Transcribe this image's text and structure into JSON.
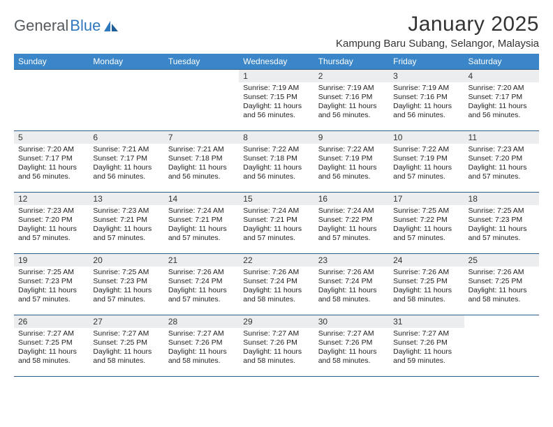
{
  "brand": {
    "part1": "General",
    "part2": "Blue"
  },
  "title": "January 2025",
  "location": "Kampung Baru Subang, Selangor, Malaysia",
  "colors": {
    "header_bg": "#3a86c8",
    "header_text": "#ffffff",
    "rule": "#2a5b86",
    "daynum_bg": "#ecedee",
    "brand_gray": "#555a5e",
    "brand_blue": "#2f78bd"
  },
  "weekdays": [
    "Sunday",
    "Monday",
    "Tuesday",
    "Wednesday",
    "Thursday",
    "Friday",
    "Saturday"
  ],
  "weeks": [
    [
      {
        "n": "",
        "sr": "",
        "ss": "",
        "dl": ""
      },
      {
        "n": "",
        "sr": "",
        "ss": "",
        "dl": ""
      },
      {
        "n": "",
        "sr": "",
        "ss": "",
        "dl": ""
      },
      {
        "n": "1",
        "sr": "Sunrise: 7:19 AM",
        "ss": "Sunset: 7:15 PM",
        "dl": "Daylight: 11 hours and 56 minutes."
      },
      {
        "n": "2",
        "sr": "Sunrise: 7:19 AM",
        "ss": "Sunset: 7:16 PM",
        "dl": "Daylight: 11 hours and 56 minutes."
      },
      {
        "n": "3",
        "sr": "Sunrise: 7:19 AM",
        "ss": "Sunset: 7:16 PM",
        "dl": "Daylight: 11 hours and 56 minutes."
      },
      {
        "n": "4",
        "sr": "Sunrise: 7:20 AM",
        "ss": "Sunset: 7:17 PM",
        "dl": "Daylight: 11 hours and 56 minutes."
      }
    ],
    [
      {
        "n": "5",
        "sr": "Sunrise: 7:20 AM",
        "ss": "Sunset: 7:17 PM",
        "dl": "Daylight: 11 hours and 56 minutes."
      },
      {
        "n": "6",
        "sr": "Sunrise: 7:21 AM",
        "ss": "Sunset: 7:17 PM",
        "dl": "Daylight: 11 hours and 56 minutes."
      },
      {
        "n": "7",
        "sr": "Sunrise: 7:21 AM",
        "ss": "Sunset: 7:18 PM",
        "dl": "Daylight: 11 hours and 56 minutes."
      },
      {
        "n": "8",
        "sr": "Sunrise: 7:22 AM",
        "ss": "Sunset: 7:18 PM",
        "dl": "Daylight: 11 hours and 56 minutes."
      },
      {
        "n": "9",
        "sr": "Sunrise: 7:22 AM",
        "ss": "Sunset: 7:19 PM",
        "dl": "Daylight: 11 hours and 56 minutes."
      },
      {
        "n": "10",
        "sr": "Sunrise: 7:22 AM",
        "ss": "Sunset: 7:19 PM",
        "dl": "Daylight: 11 hours and 57 minutes."
      },
      {
        "n": "11",
        "sr": "Sunrise: 7:23 AM",
        "ss": "Sunset: 7:20 PM",
        "dl": "Daylight: 11 hours and 57 minutes."
      }
    ],
    [
      {
        "n": "12",
        "sr": "Sunrise: 7:23 AM",
        "ss": "Sunset: 7:20 PM",
        "dl": "Daylight: 11 hours and 57 minutes."
      },
      {
        "n": "13",
        "sr": "Sunrise: 7:23 AM",
        "ss": "Sunset: 7:21 PM",
        "dl": "Daylight: 11 hours and 57 minutes."
      },
      {
        "n": "14",
        "sr": "Sunrise: 7:24 AM",
        "ss": "Sunset: 7:21 PM",
        "dl": "Daylight: 11 hours and 57 minutes."
      },
      {
        "n": "15",
        "sr": "Sunrise: 7:24 AM",
        "ss": "Sunset: 7:21 PM",
        "dl": "Daylight: 11 hours and 57 minutes."
      },
      {
        "n": "16",
        "sr": "Sunrise: 7:24 AM",
        "ss": "Sunset: 7:22 PM",
        "dl": "Daylight: 11 hours and 57 minutes."
      },
      {
        "n": "17",
        "sr": "Sunrise: 7:25 AM",
        "ss": "Sunset: 7:22 PM",
        "dl": "Daylight: 11 hours and 57 minutes."
      },
      {
        "n": "18",
        "sr": "Sunrise: 7:25 AM",
        "ss": "Sunset: 7:23 PM",
        "dl": "Daylight: 11 hours and 57 minutes."
      }
    ],
    [
      {
        "n": "19",
        "sr": "Sunrise: 7:25 AM",
        "ss": "Sunset: 7:23 PM",
        "dl": "Daylight: 11 hours and 57 minutes."
      },
      {
        "n": "20",
        "sr": "Sunrise: 7:25 AM",
        "ss": "Sunset: 7:23 PM",
        "dl": "Daylight: 11 hours and 57 minutes."
      },
      {
        "n": "21",
        "sr": "Sunrise: 7:26 AM",
        "ss": "Sunset: 7:24 PM",
        "dl": "Daylight: 11 hours and 57 minutes."
      },
      {
        "n": "22",
        "sr": "Sunrise: 7:26 AM",
        "ss": "Sunset: 7:24 PM",
        "dl": "Daylight: 11 hours and 58 minutes."
      },
      {
        "n": "23",
        "sr": "Sunrise: 7:26 AM",
        "ss": "Sunset: 7:24 PM",
        "dl": "Daylight: 11 hours and 58 minutes."
      },
      {
        "n": "24",
        "sr": "Sunrise: 7:26 AM",
        "ss": "Sunset: 7:25 PM",
        "dl": "Daylight: 11 hours and 58 minutes."
      },
      {
        "n": "25",
        "sr": "Sunrise: 7:26 AM",
        "ss": "Sunset: 7:25 PM",
        "dl": "Daylight: 11 hours and 58 minutes."
      }
    ],
    [
      {
        "n": "26",
        "sr": "Sunrise: 7:27 AM",
        "ss": "Sunset: 7:25 PM",
        "dl": "Daylight: 11 hours and 58 minutes."
      },
      {
        "n": "27",
        "sr": "Sunrise: 7:27 AM",
        "ss": "Sunset: 7:25 PM",
        "dl": "Daylight: 11 hours and 58 minutes."
      },
      {
        "n": "28",
        "sr": "Sunrise: 7:27 AM",
        "ss": "Sunset: 7:26 PM",
        "dl": "Daylight: 11 hours and 58 minutes."
      },
      {
        "n": "29",
        "sr": "Sunrise: 7:27 AM",
        "ss": "Sunset: 7:26 PM",
        "dl": "Daylight: 11 hours and 58 minutes."
      },
      {
        "n": "30",
        "sr": "Sunrise: 7:27 AM",
        "ss": "Sunset: 7:26 PM",
        "dl": "Daylight: 11 hours and 58 minutes."
      },
      {
        "n": "31",
        "sr": "Sunrise: 7:27 AM",
        "ss": "Sunset: 7:26 PM",
        "dl": "Daylight: 11 hours and 59 minutes."
      },
      {
        "n": "",
        "sr": "",
        "ss": "",
        "dl": ""
      }
    ]
  ]
}
